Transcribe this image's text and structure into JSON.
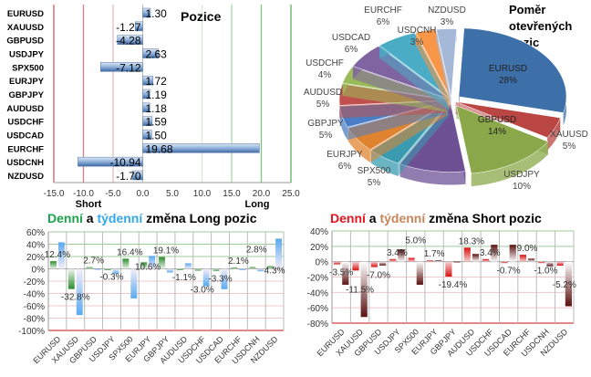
{
  "chart_data": [
    {
      "type": "bar",
      "orientation": "horizontal",
      "title": "Pozice",
      "categories": [
        "EURUSD",
        "XAUUSD",
        "GBPUSD",
        "USDJPY",
        "SPX500",
        "EURJPY",
        "GBPJPY",
        "AUDUSD",
        "USDCHF",
        "USDCAD",
        "EURCHF",
        "USDCNH",
        "NZDUSD"
      ],
      "values": [
        1.3,
        -1.27,
        -4.28,
        2.63,
        -7.12,
        1.72,
        1.19,
        1.18,
        1.59,
        1.5,
        19.68,
        -10.94,
        -1.7
      ],
      "labels": [
        "1.30",
        "-1.27",
        "-4.28",
        "2.63",
        "-7.12",
        "1.72",
        "1.19",
        "1.18",
        "1.59",
        "1.50",
        "19.68",
        "-10.94",
        "-1.70"
      ],
      "xlim": [
        -15,
        25
      ],
      "xticks": [
        "-15.0",
        "-10.0",
        "-5.0",
        "0.0",
        "5.0",
        "10.0",
        "15.0",
        "20.0",
        "25.0"
      ],
      "short_label": "Short",
      "long_label": "Long",
      "bar_color": "#4f7fbf"
    },
    {
      "type": "pie",
      "title_lines": [
        "Poměr",
        "otevřených",
        "pozic"
      ],
      "slices": [
        {
          "name": "EURUSD",
          "value": 28,
          "label": "28%",
          "color": "#3d6fa8"
        },
        {
          "name": "XAUUSD",
          "value": 5,
          "label": "5%",
          "color": "#b94643"
        },
        {
          "name": "GBPUSD",
          "value": 14,
          "label": "14%",
          "color": "#8aa84a"
        },
        {
          "name": "USDJPY",
          "value": 10,
          "label": "10%",
          "color": "#6e5195"
        },
        {
          "name": "SPX500",
          "value": 5,
          "label": "5%",
          "color": "#3a9bb0"
        },
        {
          "name": "EURJPY",
          "value": 6,
          "label": "6%",
          "color": "#e0832f"
        },
        {
          "name": "GBPJPY",
          "value": 5,
          "label": "5%",
          "color": "#4a7ec4"
        },
        {
          "name": "AUDUSD",
          "value": 5,
          "label": "5%",
          "color": "#c0504d"
        },
        {
          "name": "USDCHF",
          "value": 4,
          "label": "4%",
          "color": "#9bbb59"
        },
        {
          "name": "USDCAD",
          "value": 6,
          "label": "6%",
          "color": "#8064a2"
        },
        {
          "name": "EURCHF",
          "value": 6,
          "label": "6%",
          "color": "#4bacc6"
        },
        {
          "name": "USDCNH",
          "value": 3,
          "label": "3%",
          "color": "#f79646"
        },
        {
          "name": "NZDUSD",
          "value": 3,
          "label": "3%",
          "color": "#a5b8d8"
        }
      ]
    },
    {
      "type": "bar",
      "title_parts": [
        {
          "text": "Denní",
          "color": "#1aa34a"
        },
        {
          "text": " a ",
          "color": "#000000"
        },
        {
          "text": "týdenní",
          "color": "#33a8e8"
        },
        {
          "text": " změna Long pozic",
          "color": "#000000"
        }
      ],
      "categories": [
        "EURUSD",
        "XAUUSD",
        "GBPUSD",
        "USDJPY",
        "SPX500",
        "EURJPY",
        "GBPJPY",
        "AUDUSD",
        "USDCHF",
        "USDCAD",
        "EURCHF",
        "USDCNH",
        "NZDUSD"
      ],
      "series": [
        {
          "values": [
            12.4,
            -32.8,
            2.7,
            -0.3,
            16.4,
            10.6,
            19.1,
            -1.1,
            -3.0,
            -3.3,
            2.1,
            2.8,
            4.3
          ],
          "labels": [
            "12.4%",
            "-32.8%",
            "2.7%",
            "-0.3%",
            "16.4%",
            "10.6%",
            "19.1%",
            "-1.1%",
            "-3.0%",
            "-3.3%",
            "2.1%",
            "2.8%",
            "4.3%"
          ],
          "color": "#2e8b2e"
        },
        {
          "values": [
            43,
            -75,
            0,
            -8,
            -48,
            21,
            -6,
            9,
            -28,
            -33,
            -1,
            -4,
            49
          ],
          "color": "#5aaaf0"
        }
      ],
      "ylim": [
        -100,
        60
      ],
      "yticks": [
        "60%",
        "40%",
        "20%",
        "0%",
        "-20%",
        "-40%",
        "-60%",
        "-80%",
        "-100%"
      ]
    },
    {
      "type": "bar",
      "title_parts": [
        {
          "text": "Denní",
          "color": "#e8141e"
        },
        {
          "text": " a ",
          "color": "#000000"
        },
        {
          "text": "týdenní",
          "color": "#c8855a"
        },
        {
          "text": " změna Short pozic",
          "color": "#000000"
        }
      ],
      "categories": [
        "EURUSD",
        "XAUUSD",
        "GBPUSD",
        "USDJPY",
        "SPX500",
        "EURJPY",
        "GBPJPY",
        "AUDUSD",
        "USDCHF",
        "USDCAD",
        "EURCHF",
        "USDCNH",
        "NZDUSD"
      ],
      "series": [
        {
          "values": [
            -3.5,
            -11.5,
            -7.0,
            3.4,
            5.0,
            1.7,
            -19.4,
            18.3,
            3.4,
            -0.7,
            9.0,
            -1.0,
            -5.2
          ],
          "labels": [
            "-3.5%",
            "-11.5%",
            "-7.0%",
            "3.4%",
            "5.0%",
            "1.7%",
            "-19.4%",
            "18.3%",
            "3.4%",
            "-0.7%",
            "9.0%",
            "-1.0%",
            "-5.2%"
          ],
          "color": "#d81010"
        },
        {
          "values": [
            -30,
            -72,
            -5,
            16,
            -30,
            2,
            0,
            10,
            22,
            22,
            4,
            -6,
            -58
          ],
          "color": "#5a1010"
        }
      ],
      "ylim": [
        -80,
        40
      ],
      "yticks": [
        "40%",
        "20%",
        "0%",
        "-20%",
        "-40%",
        "-60%",
        "-80%"
      ]
    }
  ]
}
